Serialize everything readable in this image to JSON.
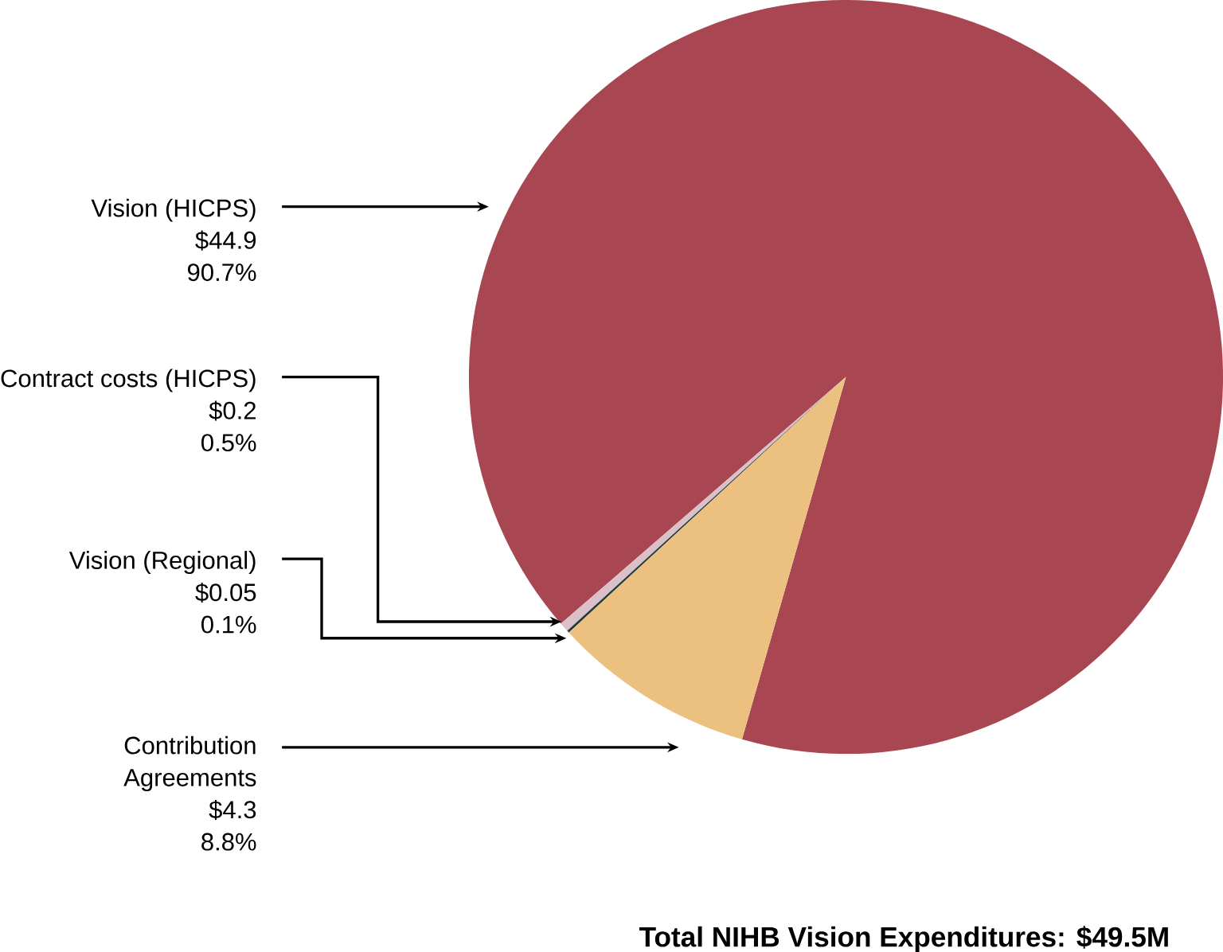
{
  "chart_data": {
    "type": "pie",
    "title": "Total NIHB Vision Expenditures: $49.5M",
    "categories": [
      "Vision (HICPS)",
      "Contract costs (HICPS)",
      "Vision (Regional)",
      "Contribution Agreements"
    ],
    "values": [
      44.9,
      0.2,
      0.05,
      4.3
    ],
    "value_labels": [
      "$44.9",
      "$0.2",
      "$0.05",
      "$4.3"
    ],
    "annotations": [
      "90.7%",
      "0.5%",
      "0.1%",
      "8.8%"
    ],
    "colors": [
      "#a84652",
      "#dcc0c8",
      "#1f3a3a",
      "#ecc07f"
    ]
  }
}
